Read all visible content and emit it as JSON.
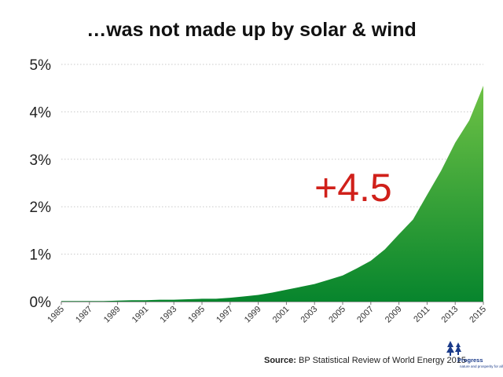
{
  "chart_data": {
    "type": "area",
    "title": "…was not made up by solar & wind",
    "xlabel": "",
    "ylabel": "",
    "x": [
      1985,
      1986,
      1987,
      1988,
      1989,
      1990,
      1991,
      1992,
      1993,
      1994,
      1995,
      1996,
      1997,
      1998,
      1999,
      2000,
      2001,
      2002,
      2003,
      2004,
      2005,
      2006,
      2007,
      2008,
      2009,
      2010,
      2011,
      2012,
      2013,
      2014,
      2015
    ],
    "series": [
      {
        "values": [
          0.01,
          0.01,
          0.01,
          0.01,
          0.02,
          0.03,
          0.03,
          0.04,
          0.04,
          0.05,
          0.06,
          0.06,
          0.08,
          0.11,
          0.14,
          0.19,
          0.25,
          0.31,
          0.37,
          0.46,
          0.55,
          0.7,
          0.86,
          1.1,
          1.42,
          1.73,
          2.25,
          2.76,
          3.35,
          3.82,
          4.55
        ],
        "color": "#2a9d38"
      }
    ],
    "ylim": [
      0,
      5
    ],
    "yticks": [
      "0%",
      "1%",
      "2%",
      "3%",
      "4%",
      "5%"
    ],
    "xticks": [
      "1985",
      "1987",
      "1989",
      "1991",
      "1993",
      "1995",
      "1997",
      "1999",
      "2001",
      "2003",
      "2005",
      "2007",
      "2009",
      "2011",
      "2013",
      "2015"
    ],
    "grid": true,
    "annotation": "+4.5",
    "colors": {
      "area_top": "#6ec245",
      "area_bottom": "#07852d",
      "annotation": "#d0201a"
    }
  },
  "source": {
    "label": "Source:",
    "text": "BP Statistical Review of World Energy 2015"
  },
  "logo": {
    "name": "Progress",
    "tagline": "nature and prosperity for all"
  }
}
